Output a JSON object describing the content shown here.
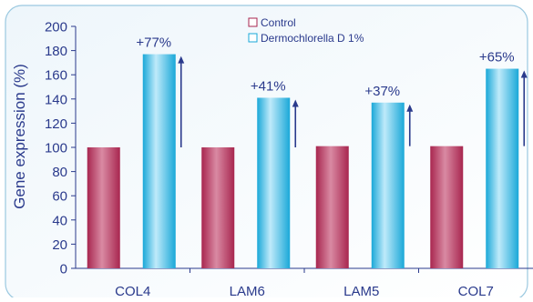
{
  "chart_data": {
    "type": "bar",
    "categories": [
      "COL4",
      "LAM6",
      "LAM5",
      "COL7"
    ],
    "series": [
      {
        "name": "Control",
        "values": [
          100,
          100,
          101,
          101
        ]
      },
      {
        "name": "Dermochlorella D 1%",
        "values": [
          177,
          141,
          137,
          165
        ]
      }
    ],
    "annotations": [
      "+77%",
      "+41%",
      "+37%",
      "+65%"
    ],
    "ylabel": "Gene expression (%)",
    "xlabel": "",
    "ylim": [
      0,
      200
    ],
    "yticks": [
      0,
      20,
      40,
      60,
      80,
      100,
      120,
      140,
      160,
      180,
      200
    ],
    "grid": false,
    "legend_position": "top-center",
    "colors": {
      "control": "#a8264f",
      "control_light": "#d98aa3",
      "treatment": "#1aa8d8",
      "treatment_light": "#bfeafa",
      "arrow": "#2a3a8c",
      "text": "#2a3a8c",
      "frame": "#9ac8e0",
      "background_gradient_start": "#eef6fb",
      "background_gradient_end": "#ffffff"
    }
  }
}
